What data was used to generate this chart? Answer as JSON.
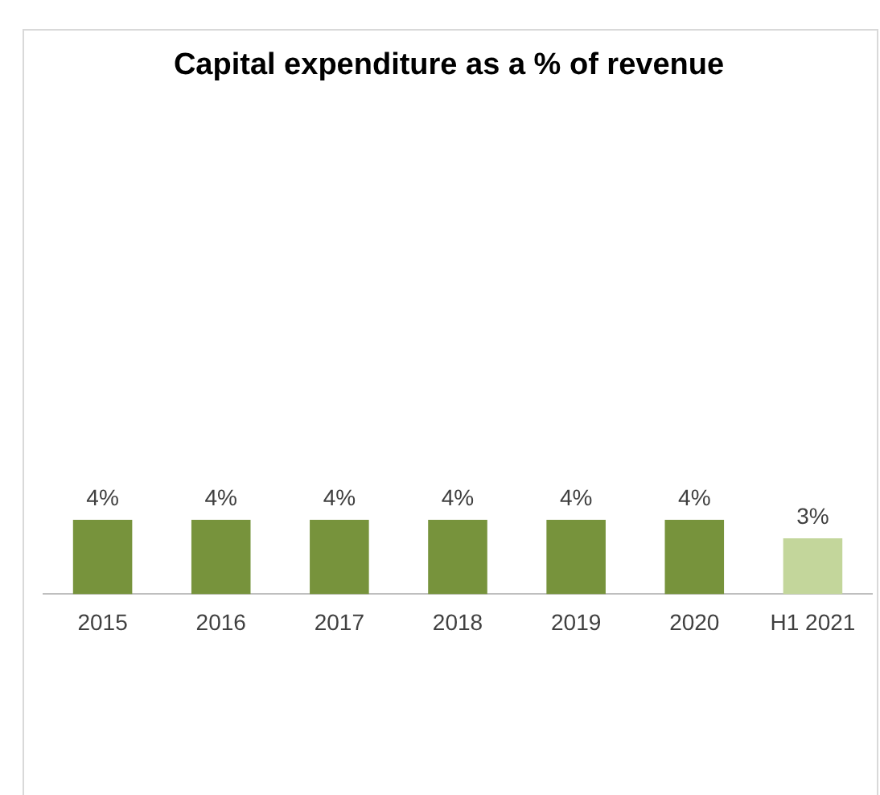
{
  "chart_data": {
    "type": "bar",
    "title": "Capital expenditure as a % of revenue",
    "categories": [
      "2015",
      "2016",
      "2017",
      "2018",
      "2019",
      "2020",
      "H1 2021"
    ],
    "values": [
      4,
      4,
      4,
      4,
      4,
      4,
      3
    ],
    "value_labels": [
      "4%",
      "4%",
      "4%",
      "4%",
      "4%",
      "4%",
      "3%"
    ],
    "colors": [
      "#77933c",
      "#77933c",
      "#77933c",
      "#77933c",
      "#77933c",
      "#77933c",
      "#c3d69b"
    ],
    "grid": false,
    "legend": false
  }
}
